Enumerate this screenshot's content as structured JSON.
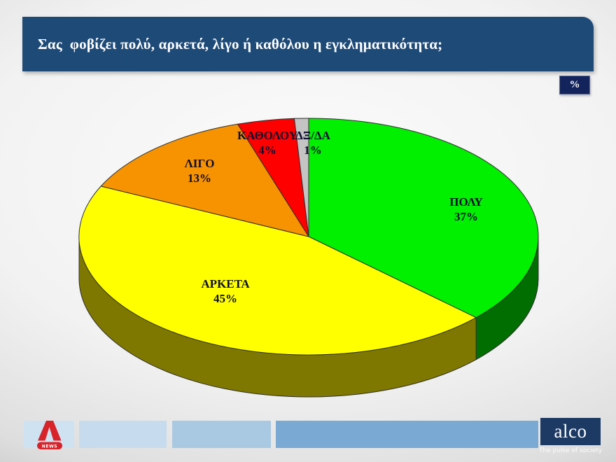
{
  "header": {
    "title": "Σας  φοβίζει πολύ, αρκετά, λίγο ή καθόλου η εγκληματικότητα;",
    "bg_color": "#1e4a78",
    "text_color": "#ffffff"
  },
  "unit_badge": {
    "label": "%",
    "bg_color": "#13235b"
  },
  "chart_data": {
    "type": "pie",
    "style": "3d",
    "title": "Σας φοβίζει πολύ, αρκετά, λίγο ή καθόλου η εγκληματικότητα;",
    "unit": "%",
    "direction": "clockwise",
    "start_angle_deg": 0,
    "legend": "none",
    "labels": [
      "ΠΟΛΥ",
      "ΑΡΚΕΤΑ",
      "ΛΙΓΟ",
      "ΚΑΘΟΛΟΥ",
      "ΔΞ/ΔΑ"
    ],
    "values": [
      37,
      45,
      13,
      4,
      1
    ],
    "slices": [
      {
        "label": "ΠΟΛΥ",
        "value": 37,
        "value_label": "37%",
        "color": "#00f000",
        "side_color": "#006e00"
      },
      {
        "label": "ΑΡΚΕΤΑ",
        "value": 45,
        "value_label": "45%",
        "color": "#ffff00",
        "side_color": "#7f7800"
      },
      {
        "label": "ΛΙΓΟ",
        "value": 13,
        "value_label": "13%",
        "color": "#f79300",
        "side_color": "#7c4a00"
      },
      {
        "label": "ΚΑΘΟΛΟΥ",
        "value": 4,
        "value_label": "4%",
        "color": "#ff0000",
        "side_color": "#800000"
      },
      {
        "label": "ΔΞ/ΔΑ",
        "value": 1,
        "value_label": "1%",
        "color": "#c4c4c4",
        "side_color": "#626262"
      }
    ]
  },
  "footer": {
    "alpha_news": {
      "news_label": "NEWS",
      "brand_color": "#d8232a"
    },
    "alco": {
      "logo_text": "alco",
      "tagline": "The pulse of society",
      "bg_color": "#1c3a64"
    }
  }
}
